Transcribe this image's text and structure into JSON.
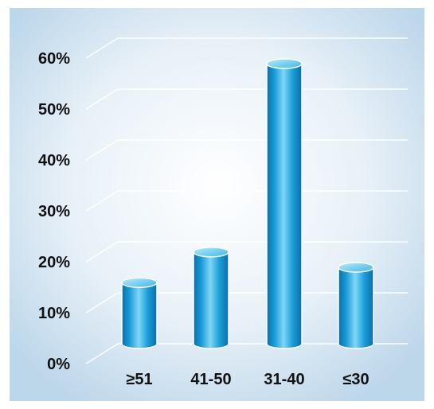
{
  "chart_data": {
    "type": "bar",
    "title": "",
    "xlabel": "",
    "ylabel": "",
    "categories": [
      "≥51",
      "41-50",
      "31-40",
      "≤30"
    ],
    "values": [
      12,
      18,
      55,
      15
    ],
    "ylim": [
      0,
      60
    ],
    "yticks": [
      0,
      10,
      20,
      30,
      40,
      50,
      60
    ],
    "ytick_labels": [
      "0%",
      "10%",
      "20%",
      "30%",
      "40%",
      "50%",
      "60%"
    ],
    "grid": true,
    "legend": "none",
    "bar_style": "3d-cylinder"
  },
  "colors": {
    "bar": "#1a9bd7",
    "bar_highlight": "#7fd6f7",
    "bar_dark": "#0a6ea5",
    "bar_top": "#6fd0f5",
    "bar_outline": "#ffffff",
    "background_center": "#ffffff",
    "background_edge": "#bcd6ea",
    "gridline": "#ffffff",
    "tick_text": "#111111"
  }
}
